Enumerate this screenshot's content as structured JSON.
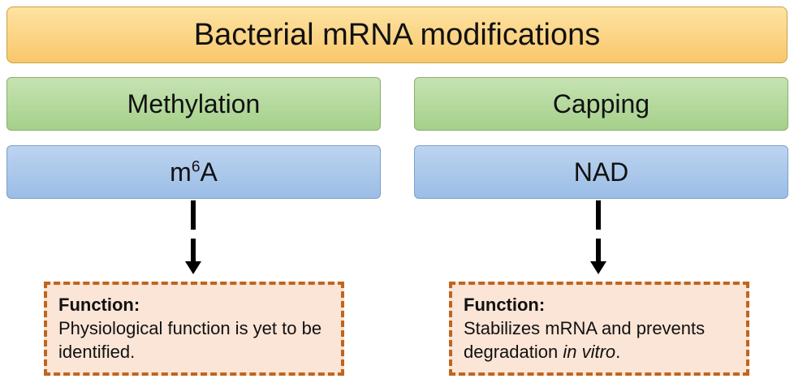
{
  "title": "Bacterial mRNA modifications",
  "left": {
    "category": "Methylation",
    "modification_base": "m",
    "modification_sup": "6",
    "modification_rest": "A",
    "function_label": "Function:",
    "function_text": "Physiological function is yet to be identified."
  },
  "right": {
    "category": "Capping",
    "modification": "NAD",
    "function_label": "Function:",
    "function_text_main": "Stabilizes mRNA and prevents degradation ",
    "function_text_italic": "in vitro",
    "function_text_end": "."
  },
  "colors": {
    "title_fill": "#f9c76b",
    "category_fill": "#a5d08a",
    "modification_fill": "#9bbde6",
    "function_fill": "#fbe5d6",
    "function_border": "#c0651e"
  }
}
